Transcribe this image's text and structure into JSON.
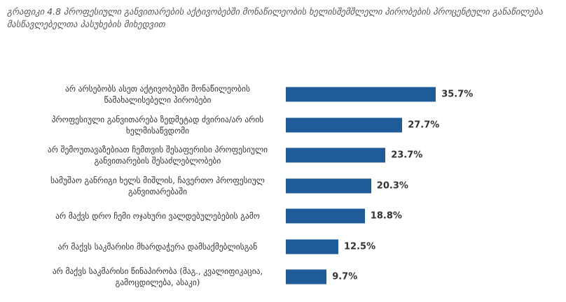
{
  "chart_data": {
    "type": "bar",
    "orientation": "horizontal",
    "title": "გრაფიკი 4.8 პროფესიული განვითარების აქტივობებში მონაწილეობის ხელისშემშლელი პირობების პროცენტული განაწილება მასწავლებელთა პასუხების მიხედვით",
    "categories": [
      "არ არსებობს ასეთ აქტივობებში მონაწილეობის წამახალისებელი პირობები",
      "პროფესიული განვითარება ზედმეტად ძვირია/არ არის ხელმისაწვდომი",
      "არ შემოუთავაზებიათ ჩემთვის შესაფერისი პროფესიული განვითარების შესაძლებლობები",
      "სამუშაო განრიგი ხელს მიშლის, ჩავერთო პროფესიულ განვითარებაში",
      "არ მაქვს დრო ჩემი ოჯახური ვალდებულებების გამო",
      "არ მაქვს საკმარისი მხარდაჭერა დამსაქმებლისგან",
      "არ მაქვს საკმარისი წინაპირობა (მაგ., კვალიფიკაცია, გამოცდილება, ასაკი)"
    ],
    "values": [
      35.7,
      27.7,
      23.7,
      20.3,
      18.8,
      12.5,
      9.7
    ],
    "value_labels": [
      "35.7%",
      "27.7%",
      "23.7%",
      "20.3%",
      "18.8%",
      "12.5%",
      "9.7%"
    ],
    "color": "#1f5c99"
  }
}
